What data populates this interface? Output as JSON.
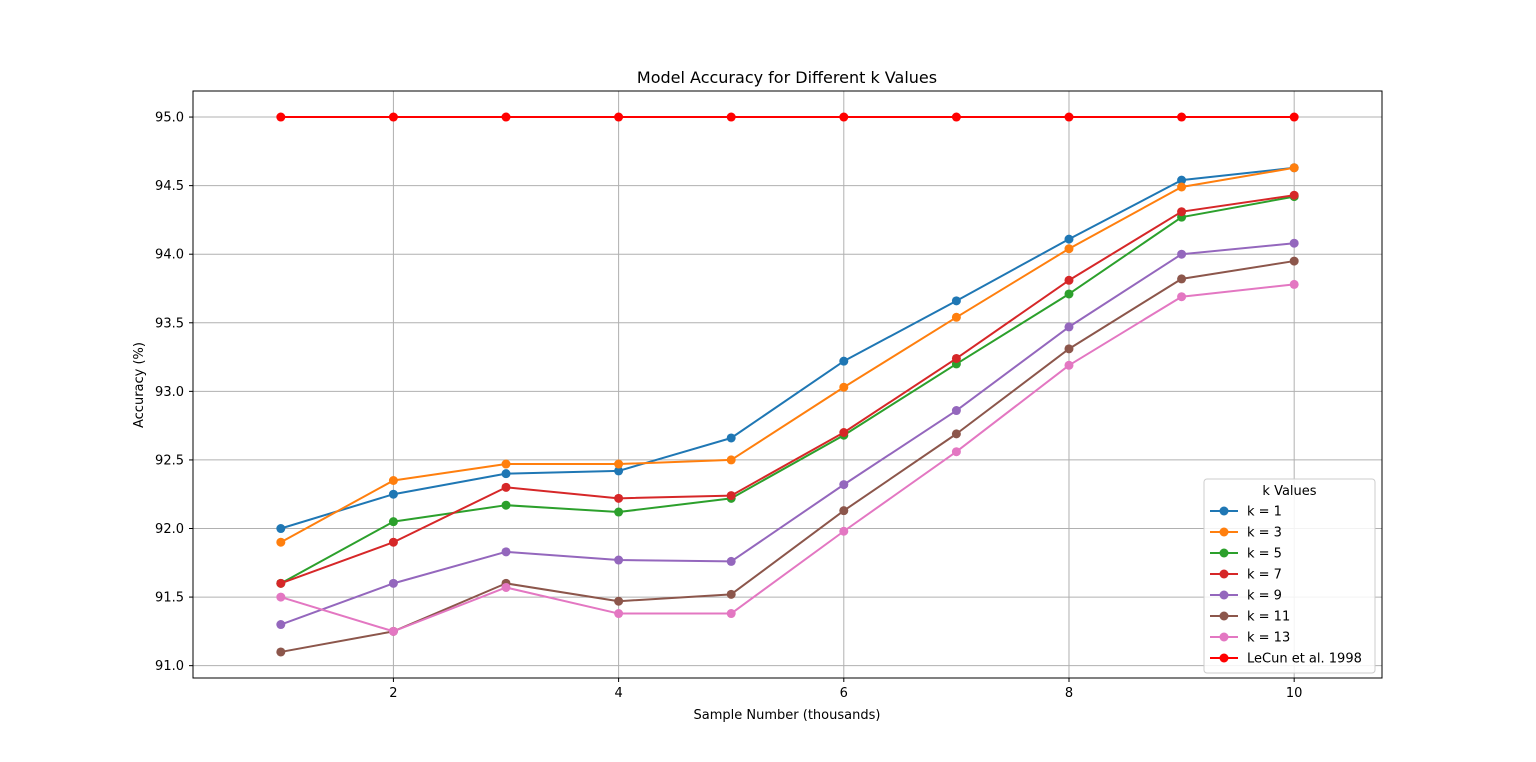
{
  "chart_data": {
    "type": "line",
    "title": "Model Accuracy for Different k Values",
    "xlabel": "Sample Number (thousands)",
    "ylabel": "Accuracy (%)",
    "x": [
      1,
      2,
      3,
      4,
      5,
      6,
      7,
      8,
      9,
      10
    ],
    "xlim": [
      0.22,
      10.78
    ],
    "ylim": [
      90.91,
      95.19
    ],
    "xticks": [
      2,
      4,
      6,
      8,
      10
    ],
    "xtick_labels": [
      "2",
      "4",
      "6",
      "8",
      "10"
    ],
    "yticks": [
      91.0,
      91.5,
      92.0,
      92.5,
      93.0,
      93.5,
      94.0,
      94.5,
      95.0
    ],
    "ytick_labels": [
      "91.0",
      "91.5",
      "92.0",
      "92.5",
      "93.0",
      "93.5",
      "94.0",
      "94.5",
      "95.0"
    ],
    "grid": true,
    "markers": "circle",
    "legend": {
      "title": "k Values",
      "placement": "lower-right"
    },
    "series": [
      {
        "name": "k = 1",
        "color": "#1f77b4",
        "values": [
          92.0,
          92.25,
          92.4,
          92.42,
          92.66,
          93.22,
          93.66,
          94.11,
          94.54,
          94.63
        ]
      },
      {
        "name": "k = 3",
        "color": "#ff7f0e",
        "values": [
          91.9,
          92.35,
          92.47,
          92.47,
          92.5,
          93.03,
          93.54,
          94.04,
          94.49,
          94.63
        ]
      },
      {
        "name": "k = 5",
        "color": "#2ca02c",
        "values": [
          91.6,
          92.05,
          92.17,
          92.12,
          92.22,
          92.68,
          93.2,
          93.71,
          94.27,
          94.42
        ]
      },
      {
        "name": "k = 7",
        "color": "#d62728",
        "values": [
          91.6,
          91.9,
          92.3,
          92.22,
          92.24,
          92.7,
          93.24,
          93.81,
          94.31,
          94.43
        ]
      },
      {
        "name": "k = 9",
        "color": "#9467bd",
        "values": [
          91.3,
          91.6,
          91.83,
          91.77,
          91.76,
          92.32,
          92.86,
          93.47,
          94.0,
          94.08
        ]
      },
      {
        "name": "k = 11",
        "color": "#8c564b",
        "values": [
          91.1,
          91.25,
          91.6,
          91.47,
          91.52,
          92.13,
          92.69,
          93.31,
          93.82,
          93.95
        ]
      },
      {
        "name": "k = 13",
        "color": "#e377c2",
        "values": [
          91.5,
          91.25,
          91.57,
          91.38,
          91.38,
          91.98,
          92.56,
          93.19,
          93.69,
          93.78
        ]
      },
      {
        "name": "LeCun et al. 1998",
        "color": "#ff0000",
        "values": [
          95.0,
          95.0,
          95.0,
          95.0,
          95.0,
          95.0,
          95.0,
          95.0,
          95.0,
          95.0
        ]
      }
    ]
  }
}
